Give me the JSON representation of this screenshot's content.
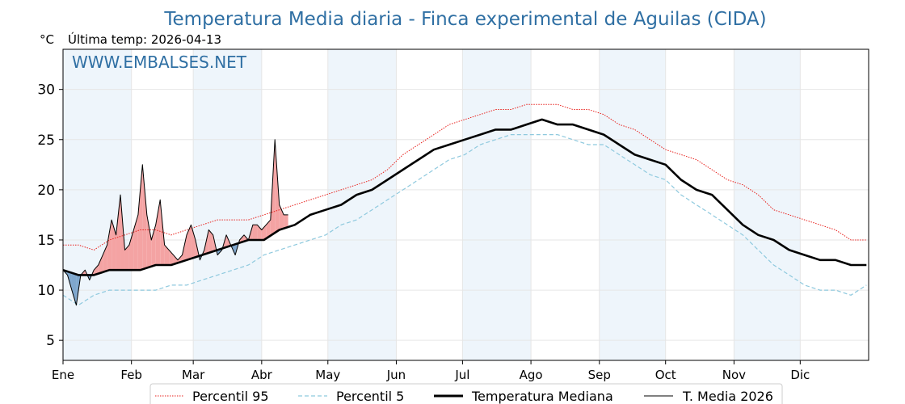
{
  "chart_data": {
    "type": "line",
    "title": "Temperatura Media diaria - Finca experimental de Aguilas (CIDA)",
    "unit_label": "°C",
    "subtitle": "Última temp: 2026-04-13",
    "watermark": "WWW.EMBALSES.NET",
    "ylim": [
      3,
      34
    ],
    "y_ticks": [
      5,
      10,
      15,
      20,
      25,
      30
    ],
    "x_tick_labels": [
      "Ene",
      "Feb",
      "Mar",
      "Abr",
      "May",
      "Jun",
      "Jul",
      "Ago",
      "Sep",
      "Oct",
      "Nov",
      "Dic"
    ],
    "x_tick_days": [
      1,
      32,
      60,
      91,
      121,
      152,
      182,
      213,
      244,
      274,
      305,
      335
    ],
    "x_range_days": [
      1,
      366
    ],
    "grid": true,
    "legend_position": "bottom-center",
    "colors": {
      "p95": "#e8211d",
      "p5": "#8ec9de",
      "median": "#000000",
      "current": "#000000",
      "above_fill": "#f4a3a3",
      "below_fill": "#7fa7cd",
      "month_band": "#eef5fb"
    },
    "series": [
      {
        "name": "Percentil 95",
        "style": "dotted-red",
        "x": [
          1,
          8,
          15,
          22,
          29,
          36,
          43,
          50,
          57,
          64,
          71,
          78,
          85,
          92,
          99,
          106,
          113,
          120,
          127,
          134,
          141,
          148,
          155,
          162,
          169,
          176,
          183,
          190,
          197,
          204,
          211,
          218,
          225,
          232,
          239,
          246,
          253,
          260,
          267,
          274,
          281,
          288,
          295,
          302,
          309,
          316,
          323,
          330,
          337,
          344,
          351,
          358,
          365
        ],
        "y": [
          14.5,
          14.5,
          14.0,
          15.0,
          15.5,
          16.0,
          16.0,
          15.5,
          16.0,
          16.5,
          17.0,
          17.0,
          17.0,
          17.5,
          18.0,
          18.5,
          19.0,
          19.5,
          20.0,
          20.5,
          21.0,
          22.0,
          23.5,
          24.5,
          25.5,
          26.5,
          27.0,
          27.5,
          28.0,
          28.0,
          28.5,
          28.5,
          28.5,
          28.0,
          28.0,
          27.5,
          26.5,
          26.0,
          25.0,
          24.0,
          23.5,
          23.0,
          22.0,
          21.0,
          20.5,
          19.5,
          18.0,
          17.5,
          17.0,
          16.5,
          16.0,
          15.0,
          15.0
        ]
      },
      {
        "name": "Percentil 5",
        "style": "dashed-lightblue",
        "x": [
          1,
          8,
          15,
          22,
          29,
          36,
          43,
          50,
          57,
          64,
          71,
          78,
          85,
          92,
          99,
          106,
          113,
          120,
          127,
          134,
          141,
          148,
          155,
          162,
          169,
          176,
          183,
          190,
          197,
          204,
          211,
          218,
          225,
          232,
          239,
          246,
          253,
          260,
          267,
          274,
          281,
          288,
          295,
          302,
          309,
          316,
          323,
          330,
          337,
          344,
          351,
          358,
          365
        ],
        "y": [
          9.5,
          8.5,
          9.5,
          10.0,
          10.0,
          10.0,
          10.0,
          10.5,
          10.5,
          11.0,
          11.5,
          12.0,
          12.5,
          13.5,
          14.0,
          14.5,
          15.0,
          15.5,
          16.5,
          17.0,
          18.0,
          19.0,
          20.0,
          21.0,
          22.0,
          23.0,
          23.5,
          24.5,
          25.0,
          25.5,
          25.5,
          25.5,
          25.5,
          25.0,
          24.5,
          24.5,
          23.5,
          22.5,
          21.5,
          21.0,
          19.5,
          18.5,
          17.5,
          16.5,
          15.5,
          14.0,
          12.5,
          11.5,
          10.5,
          10.0,
          10.0,
          9.5,
          10.5
        ]
      },
      {
        "name": "Temperatura Mediana",
        "style": "thick-black",
        "x": [
          1,
          8,
          15,
          22,
          29,
          36,
          43,
          50,
          57,
          64,
          71,
          78,
          85,
          92,
          99,
          106,
          113,
          120,
          127,
          134,
          141,
          148,
          155,
          162,
          169,
          176,
          183,
          190,
          197,
          204,
          211,
          218,
          225,
          232,
          239,
          246,
          253,
          260,
          267,
          274,
          281,
          288,
          295,
          302,
          309,
          316,
          323,
          330,
          337,
          344,
          351,
          358,
          365
        ],
        "y": [
          12.0,
          11.5,
          11.5,
          12.0,
          12.0,
          12.0,
          12.5,
          12.5,
          13.0,
          13.5,
          14.0,
          14.5,
          15.0,
          15.0,
          16.0,
          16.5,
          17.5,
          18.0,
          18.5,
          19.5,
          20.0,
          21.0,
          22.0,
          23.0,
          24.0,
          24.5,
          25.0,
          25.5,
          26.0,
          26.0,
          26.5,
          27.0,
          26.5,
          26.5,
          26.0,
          25.5,
          24.5,
          23.5,
          23.0,
          22.5,
          21.0,
          20.0,
          19.5,
          18.0,
          16.5,
          15.5,
          15.0,
          14.0,
          13.5,
          13.0,
          13.0,
          12.5,
          12.5
        ]
      },
      {
        "name": "T. Media 2026",
        "style": "thin-black",
        "x": [
          1,
          3,
          5,
          7,
          9,
          11,
          13,
          15,
          17,
          19,
          21,
          23,
          25,
          27,
          29,
          31,
          33,
          35,
          37,
          39,
          41,
          43,
          45,
          47,
          49,
          51,
          53,
          55,
          57,
          59,
          61,
          63,
          65,
          67,
          69,
          71,
          73,
          75,
          77,
          79,
          81,
          83,
          85,
          87,
          89,
          91,
          93,
          95,
          97,
          99,
          101,
          103
        ],
        "y": [
          12.0,
          11.5,
          10.0,
          8.5,
          11.5,
          12.0,
          11.0,
          12.0,
          12.5,
          13.5,
          14.5,
          17.0,
          15.5,
          19.5,
          14.0,
          14.5,
          16.0,
          17.5,
          22.5,
          17.5,
          15.0,
          16.5,
          19.0,
          14.5,
          14.0,
          13.5,
          13.0,
          13.5,
          15.5,
          16.5,
          15.0,
          13.0,
          14.0,
          16.0,
          15.5,
          13.5,
          14.0,
          15.5,
          14.5,
          13.5,
          15.0,
          15.5,
          15.0,
          16.5,
          16.5,
          16.0,
          16.5,
          17.0,
          25.0,
          18.5,
          17.5,
          17.5
        ]
      }
    ]
  },
  "legend": {
    "items": [
      {
        "label": "Percentil 95"
      },
      {
        "label": "Percentil 5"
      },
      {
        "label": "Temperatura Mediana"
      },
      {
        "label": "T. Media 2026"
      }
    ]
  }
}
